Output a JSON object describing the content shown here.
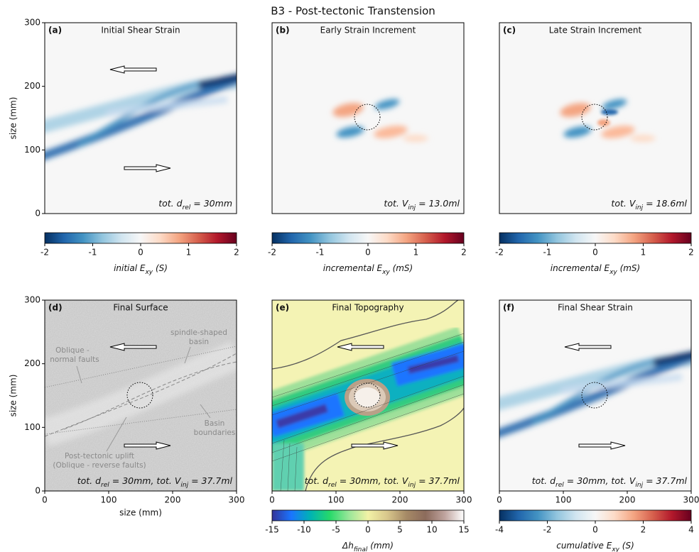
{
  "title": "B3 - Post-tectonic Transtension",
  "chart_data": [
    {
      "type": "heatmap",
      "label": "(a)",
      "title": "Initial Shear Strain",
      "xlim": [
        0,
        300
      ],
      "ylim": [
        0,
        300
      ],
      "yticks": [
        0,
        100,
        200,
        300
      ],
      "ylabel": "size (mm)",
      "annotation": [
        "tot. d",
        "rel",
        " = 30mm"
      ],
      "colorbar": {
        "clim": [
          -2,
          2
        ],
        "ticks": [
          -2,
          -1,
          0,
          1,
          2
        ],
        "label": [
          "initial E",
          "xy",
          " (S)"
        ],
        "colors": [
          "#053061",
          "#2166ac",
          "#4393c3",
          "#92c5de",
          "#d1e5f0",
          "#f7f7f7",
          "#fddbc7",
          "#f4a582",
          "#d6604d",
          "#b2182b",
          "#67001f"
        ]
      }
    },
    {
      "type": "heatmap",
      "label": "(b)",
      "title": "Early Strain Increment",
      "xlim": [
        0,
        300
      ],
      "ylim": [
        0,
        300
      ],
      "annotation": [
        "tot. V",
        "inj",
        " = 13.0ml"
      ],
      "colorbar": {
        "clim": [
          -2,
          2
        ],
        "ticks": [
          -2,
          -1,
          0,
          1,
          2
        ],
        "label": [
          "incremental E",
          "xy",
          " (mS)"
        ],
        "colors": [
          "#053061",
          "#2166ac",
          "#4393c3",
          "#92c5de",
          "#d1e5f0",
          "#f7f7f7",
          "#fddbc7",
          "#f4a582",
          "#d6604d",
          "#b2182b",
          "#67001f"
        ]
      }
    },
    {
      "type": "heatmap",
      "label": "(c)",
      "title": "Late Strain Increment",
      "xlim": [
        0,
        300
      ],
      "ylim": [
        0,
        300
      ],
      "annotation": [
        "tot. V",
        "inj",
        " = 18.6ml"
      ],
      "colorbar": {
        "clim": [
          -2,
          2
        ],
        "ticks": [
          -2,
          -1,
          0,
          1,
          2
        ],
        "label": [
          "incremental E",
          "xy",
          " (mS)"
        ],
        "colors": [
          "#053061",
          "#2166ac",
          "#4393c3",
          "#92c5de",
          "#d1e5f0",
          "#f7f7f7",
          "#fddbc7",
          "#f4a582",
          "#d6604d",
          "#b2182b",
          "#67001f"
        ]
      }
    },
    {
      "type": "image",
      "label": "(d)",
      "title": "Final Surface",
      "xlim": [
        0,
        300
      ],
      "ylim": [
        0,
        300
      ],
      "xticks": [
        0,
        100,
        200,
        300
      ],
      "yticks": [
        0,
        100,
        200,
        300
      ],
      "xlabel": "size (mm)",
      "ylabel": "size (mm)",
      "annotation": [
        "tot. d",
        "rel",
        " = 30mm, tot. V",
        "inj",
        " = 37.7ml"
      ],
      "notes": [
        [
          "Oblique -",
          "normal faults"
        ],
        [
          "spindle-shaped",
          "basin"
        ],
        [
          "Basin",
          "boundaries"
        ],
        [
          "Post-tectonic uplift",
          "(Oblique - reverse faults)"
        ]
      ]
    },
    {
      "type": "contour",
      "label": "(e)",
      "title": "Final Topography",
      "xlim": [
        0,
        300
      ],
      "ylim": [
        0,
        300
      ],
      "xticks": [
        0,
        100,
        200,
        300
      ],
      "annotation": [
        "tot. d",
        "rel",
        " = 30mm, tot. V",
        "inj",
        " = 37.7ml"
      ],
      "colorbar": {
        "clim": [
          -15,
          15
        ],
        "ticks": [
          -15,
          -10,
          -5,
          0,
          5,
          10,
          15
        ],
        "label": [
          "Δh",
          "final",
          " (mm)"
        ],
        "colors": [
          "#333399",
          "#1a75ff",
          "#00b3b3",
          "#26d96a",
          "#99e699",
          "#f2f2a6",
          "#d9c78c",
          "#a68a66",
          "#8c6b5c",
          "#bfa39e",
          "#ffffff"
        ]
      }
    },
    {
      "type": "heatmap",
      "label": "(f)",
      "title": "Final Shear Strain",
      "xlim": [
        0,
        300
      ],
      "ylim": [
        0,
        300
      ],
      "xticks": [
        0,
        100,
        200,
        300
      ],
      "annotation": [
        "tot. d",
        "rel",
        " = 30mm, tot. V",
        "inj",
        " = 37.7ml"
      ],
      "colorbar": {
        "clim": [
          -4,
          4
        ],
        "ticks": [
          -4,
          -2,
          0,
          2,
          4
        ],
        "label": [
          "cumulative E",
          "xy",
          " (S)"
        ],
        "colors": [
          "#053061",
          "#2166ac",
          "#4393c3",
          "#92c5de",
          "#d1e5f0",
          "#f7f7f7",
          "#fddbc7",
          "#f4a582",
          "#d6604d",
          "#b2182b",
          "#67001f"
        ]
      }
    }
  ]
}
